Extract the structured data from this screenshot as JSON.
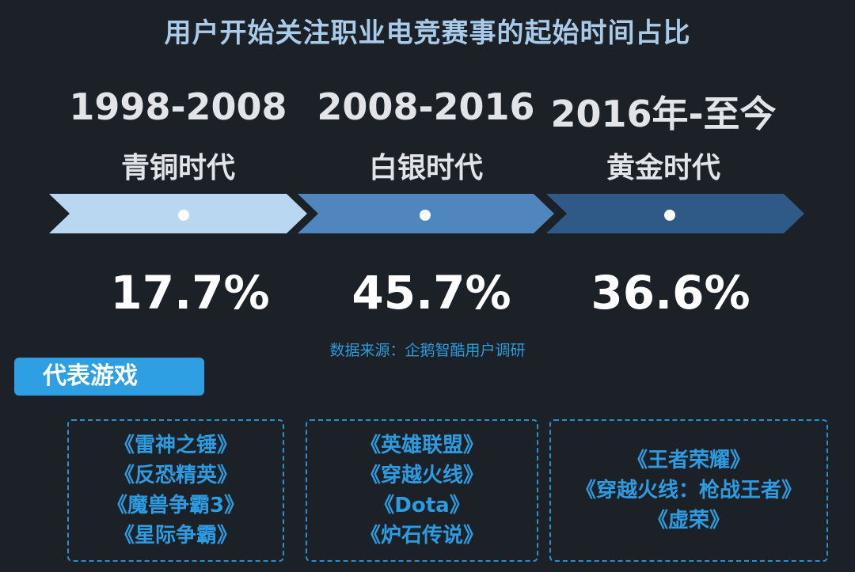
{
  "title": "用户开始关注职业电竞赛事的起始时间占比",
  "source": "数据来源：企鹅智酷用户调研",
  "games_badge": "代表游戏",
  "colors": {
    "background": "#1c2027",
    "title": "#a9cbea",
    "accent": "#2d9fe2",
    "chevron_1": "#b9d7f0",
    "chevron_2": "#4f86bd",
    "chevron_3": "#2f5986"
  },
  "chart_data": {
    "type": "table",
    "categories": [
      "1998-2008",
      "2008-2016",
      "2016年-至今"
    ],
    "era_names": [
      "青铜时代",
      "白银时代",
      "黄金时代"
    ],
    "values": [
      17.7,
      45.7,
      36.6
    ],
    "value_labels": [
      "17.7%",
      "45.7%",
      "36.6%"
    ],
    "title": "用户开始关注职业电竞赛事的起始时间占比"
  },
  "games": [
    [
      "《雷神之锤》",
      "《反恐精英》",
      "《魔兽争霸3》",
      "《星际争霸》"
    ],
    [
      "《英雄联盟》",
      "《穿越火线》",
      "《Dota》",
      "《炉石传说》"
    ],
    [
      "《王者荣耀》",
      "《穿越火线：枪战王者》",
      "《虚荣》"
    ]
  ]
}
